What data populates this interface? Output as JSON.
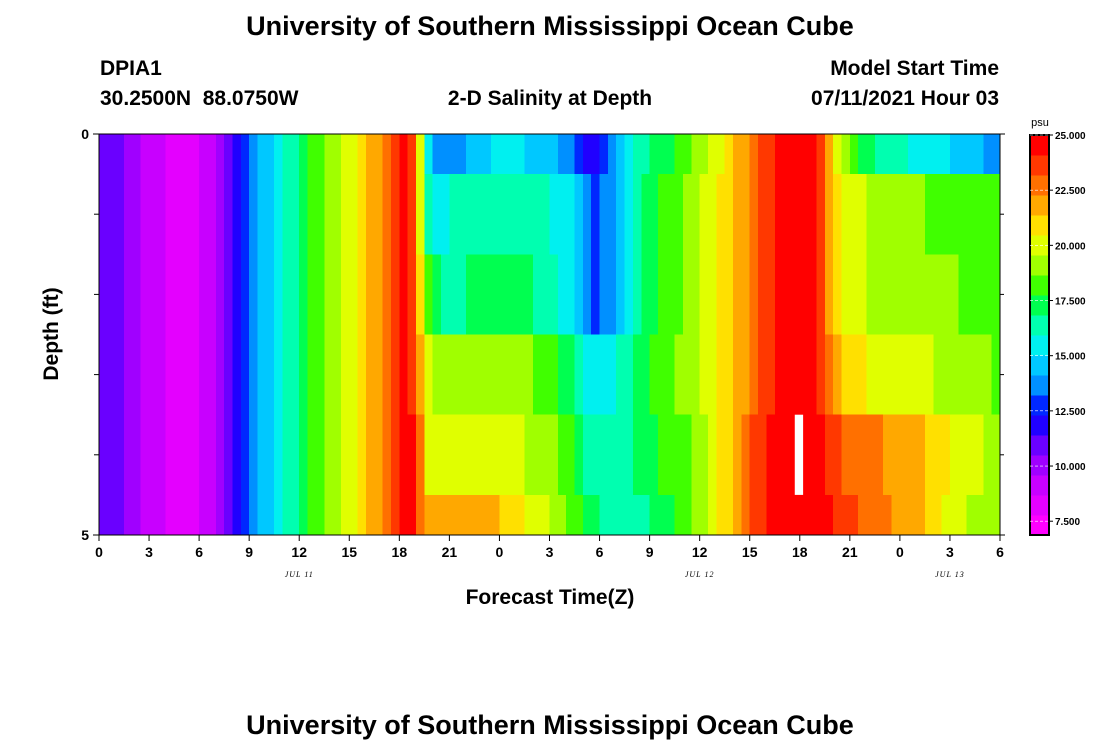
{
  "page": {
    "top_title": "University of Southern Mississippi Ocean Cube",
    "bottom_title": "University of Southern Mississippi Ocean Cube",
    "station_id": "DPIA1",
    "coords": "30.2500N  88.0750W",
    "plot_title": "2-D Salinity at Depth",
    "model_label": "Model Start Time",
    "model_time": "07/11/2021 Hour 03"
  },
  "chart_data": {
    "type": "heatmap",
    "title": "2-D Salinity at Depth",
    "xlabel": "Forecast Time(Z)",
    "ylabel": "Depth (ft)",
    "x_range_hours": [
      0,
      54
    ],
    "y_range": [
      0,
      5
    ],
    "x_ticks": [
      {
        "hour": 0,
        "label": "0"
      },
      {
        "hour": 3,
        "label": "3"
      },
      {
        "hour": 6,
        "label": "6"
      },
      {
        "hour": 9,
        "label": "9"
      },
      {
        "hour": 12,
        "label": "12"
      },
      {
        "hour": 15,
        "label": "15"
      },
      {
        "hour": 18,
        "label": "18"
      },
      {
        "hour": 21,
        "label": "21"
      },
      {
        "hour": 24,
        "label": "0"
      },
      {
        "hour": 27,
        "label": "3"
      },
      {
        "hour": 30,
        "label": "6"
      },
      {
        "hour": 33,
        "label": "9"
      },
      {
        "hour": 36,
        "label": "12"
      },
      {
        "hour": 39,
        "label": "15"
      },
      {
        "hour": 42,
        "label": "18"
      },
      {
        "hour": 45,
        "label": "21"
      },
      {
        "hour": 48,
        "label": "0"
      },
      {
        "hour": 51,
        "label": "3"
      },
      {
        "hour": 54,
        "label": "6"
      }
    ],
    "date_labels": [
      {
        "hour": 12,
        "label": "JUL 11"
      },
      {
        "hour": 36,
        "label": "JUL 12"
      },
      {
        "hour": 51,
        "label": "JUL 13"
      }
    ],
    "y_tick_labels": [
      {
        "value": 0,
        "label": "0"
      },
      {
        "value": 5,
        "label": "5"
      }
    ],
    "y_minor_ticks": [
      1,
      2,
      3,
      4
    ],
    "depth_levels": [
      0.0,
      0.5,
      1.5,
      2.5,
      3.5,
      4.5,
      5.0
    ],
    "value_keyframes": {
      "hours": [
        0,
        1,
        2,
        4,
        6,
        7.5,
        8.5,
        9.5,
        11,
        13,
        15,
        17,
        18.5,
        19,
        19.4,
        20,
        21,
        22.5,
        24,
        25.5,
        27,
        28.5,
        29.5,
        30.5,
        31.5,
        32.5,
        34,
        36,
        37.5,
        39,
        40.5,
        41,
        42,
        42.8,
        43.5,
        44.5,
        46,
        48,
        50,
        52,
        54
      ],
      "rows": [
        [
          11.5,
          11.0,
          10.0,
          8.5,
          8.5,
          10.5,
          12.5,
          14.0,
          16.0,
          18.0,
          20.0,
          22.5,
          24.5,
          22.0,
          18.5,
          13.5,
          13.5,
          14.5,
          15.5,
          15.0,
          14.5,
          13.0,
          12.0,
          13.0,
          15.0,
          16.5,
          17.5,
          19.0,
          20.5,
          22.5,
          24.0,
          25.0,
          25.0,
          25.0,
          23.0,
          19.0,
          17.0,
          16.0,
          15.5,
          14.5,
          13.5
        ],
        [
          11.5,
          11.0,
          10.0,
          8.5,
          8.5,
          10.5,
          12.5,
          14.0,
          16.0,
          18.0,
          20.0,
          22.5,
          24.5,
          22.0,
          18.5,
          15.0,
          16.0,
          16.0,
          16.5,
          16.5,
          16.0,
          15.0,
          13.0,
          13.5,
          15.5,
          17.0,
          18.0,
          19.5,
          21.0,
          22.5,
          24.0,
          25.0,
          25.0,
          25.0,
          23.0,
          20.0,
          19.5,
          19.0,
          18.5,
          18.5,
          18.5
        ],
        [
          11.5,
          11.0,
          10.0,
          8.5,
          8.5,
          10.5,
          12.5,
          14.0,
          16.0,
          18.0,
          20.0,
          22.5,
          24.5,
          23.0,
          19.5,
          17.0,
          16.5,
          17.0,
          17.0,
          17.0,
          16.5,
          15.0,
          13.0,
          13.5,
          15.5,
          17.0,
          18.0,
          19.5,
          21.0,
          22.5,
          24.0,
          25.0,
          25.0,
          25.0,
          23.0,
          20.0,
          19.5,
          19.5,
          19.0,
          18.5,
          18.5
        ],
        [
          11.5,
          11.0,
          10.0,
          8.5,
          8.5,
          10.5,
          12.5,
          14.0,
          16.0,
          18.0,
          20.0,
          22.5,
          24.5,
          23.5,
          20.5,
          19.0,
          19.0,
          19.0,
          19.0,
          19.0,
          18.0,
          17.0,
          15.5,
          15.5,
          16.5,
          17.5,
          18.5,
          19.5,
          21.0,
          22.5,
          24.0,
          25.0,
          25.0,
          25.0,
          23.5,
          21.0,
          20.5,
          20.0,
          19.5,
          19.0,
          18.5
        ],
        [
          11.5,
          11.0,
          10.0,
          8.5,
          8.5,
          10.5,
          12.5,
          14.0,
          16.0,
          18.0,
          20.0,
          22.5,
          24.5,
          24.0,
          21.5,
          19.5,
          20.0,
          20.5,
          20.0,
          19.5,
          19.0,
          17.5,
          16.5,
          16.0,
          16.5,
          17.0,
          18.0,
          19.0,
          21.0,
          23.0,
          24.5,
          25.0,
          25.0,
          25.0,
          24.0,
          23.0,
          22.5,
          22.0,
          21.0,
          20.0,
          19.0
        ],
        [
          11.5,
          11.0,
          10.0,
          8.5,
          8.5,
          10.5,
          12.5,
          14.0,
          16.0,
          18.0,
          20.0,
          22.5,
          24.5,
          24.0,
          22.5,
          21.5,
          21.5,
          22.0,
          21.5,
          20.5,
          19.5,
          18.0,
          17.0,
          16.5,
          16.5,
          16.5,
          17.5,
          19.0,
          21.0,
          23.0,
          24.5,
          25.0,
          25.0,
          25.0,
          24.5,
          23.5,
          23.0,
          22.0,
          21.0,
          19.5,
          19.0
        ]
      ]
    },
    "missing_data": {
      "hour_range": [
        41.7,
        42.2
      ],
      "depth_range": [
        3.5,
        4.5
      ],
      "color": "#ffffff"
    },
    "colorbar": {
      "unit": "psu",
      "range": [
        6.875,
        25.0
      ],
      "tick_values": [
        7.5,
        10.0,
        12.5,
        15.0,
        17.5,
        20.0,
        22.5,
        25.0
      ],
      "tick_labels": [
        "7.500",
        "10.000",
        "12.500",
        "15.000",
        "17.500",
        "20.000",
        "22.500",
        "25.000"
      ],
      "colors": [
        "#ff00ff",
        "#e400ff",
        "#c800ff",
        "#a000ff",
        "#6a00ff",
        "#2000ff",
        "#0028ff",
        "#0090ff",
        "#00c8ff",
        "#00f0f0",
        "#00ffb0",
        "#00ff50",
        "#40ff00",
        "#a0ff00",
        "#e0ff00",
        "#ffe000",
        "#ffa800",
        "#ff7000",
        "#ff3800",
        "#ff0000"
      ]
    }
  }
}
